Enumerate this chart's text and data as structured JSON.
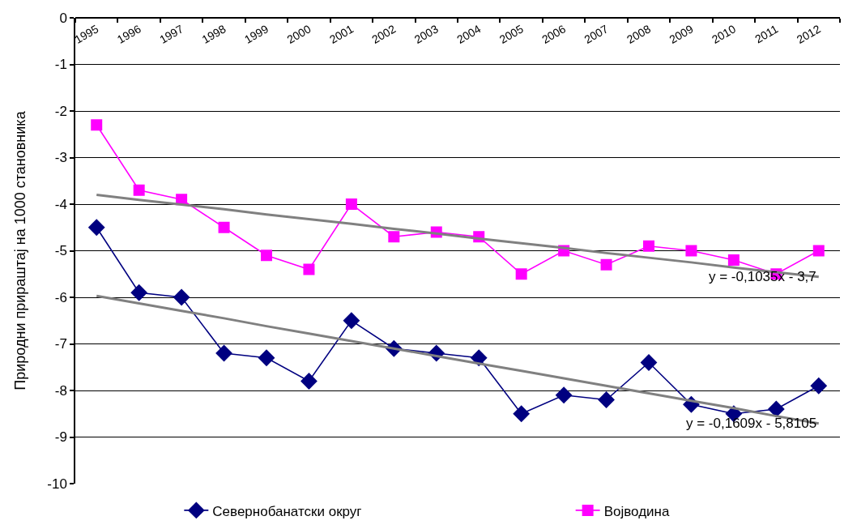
{
  "chart_data": {
    "type": "line",
    "ylabel": "Природни прираштај на 1000 становника",
    "categories": [
      "1995",
      "1996",
      "1997",
      "1998",
      "1999",
      "2000",
      "2001",
      "2002",
      "2003",
      "2004",
      "2005",
      "2006",
      "2007",
      "2008",
      "2009",
      "2010",
      "2011",
      "2012"
    ],
    "ylim": [
      -10,
      0
    ],
    "yticks": [
      0,
      -1,
      -2,
      -3,
      -4,
      -5,
      -6,
      -7,
      -8,
      -9,
      -10
    ],
    "grid": "y",
    "legend": "bottom",
    "series": [
      {
        "name": "Севернобанатски округ",
        "color": "#000080",
        "marker": "diamond",
        "values": [
          -4.5,
          -5.9,
          -6.0,
          -7.2,
          -7.3,
          -7.8,
          -6.5,
          -7.1,
          -7.2,
          -7.3,
          -8.5,
          -8.1,
          -8.2,
          -7.4,
          -8.3,
          -8.5,
          -8.4,
          -7.9
        ]
      },
      {
        "name": "Војводина",
        "color": "#ff00ff",
        "marker": "square",
        "values": [
          -2.3,
          -3.7,
          -3.9,
          -4.5,
          -5.1,
          -5.4,
          -4.0,
          -4.7,
          -4.6,
          -4.7,
          -5.5,
          -5.0,
          -5.3,
          -4.9,
          -5.0,
          -5.2,
          -5.5,
          -5.0
        ]
      },
      {
        "type": "line",
        "color": "#808080",
        "marker": "none",
        "values": [
          -3.8,
          -3.91,
          -4.01,
          -4.11,
          -4.22,
          -4.32,
          -4.42,
          -4.53,
          -4.63,
          -4.74,
          -4.84,
          -4.94,
          -5.05,
          -5.15,
          -5.25,
          -5.36,
          -5.46,
          -5.56
        ]
      },
      {
        "type": "line",
        "color": "#808080",
        "marker": "none",
        "values": [
          -5.97,
          -6.13,
          -6.29,
          -6.45,
          -6.62,
          -6.78,
          -6.94,
          -7.1,
          -7.26,
          -7.42,
          -7.58,
          -7.74,
          -7.9,
          -8.06,
          -8.22,
          -8.38,
          -8.55,
          -8.71
        ]
      }
    ],
    "annotations": [
      "y = -0,1035x - 3,7",
      "y = -0,1609x - 5,8105"
    ]
  }
}
